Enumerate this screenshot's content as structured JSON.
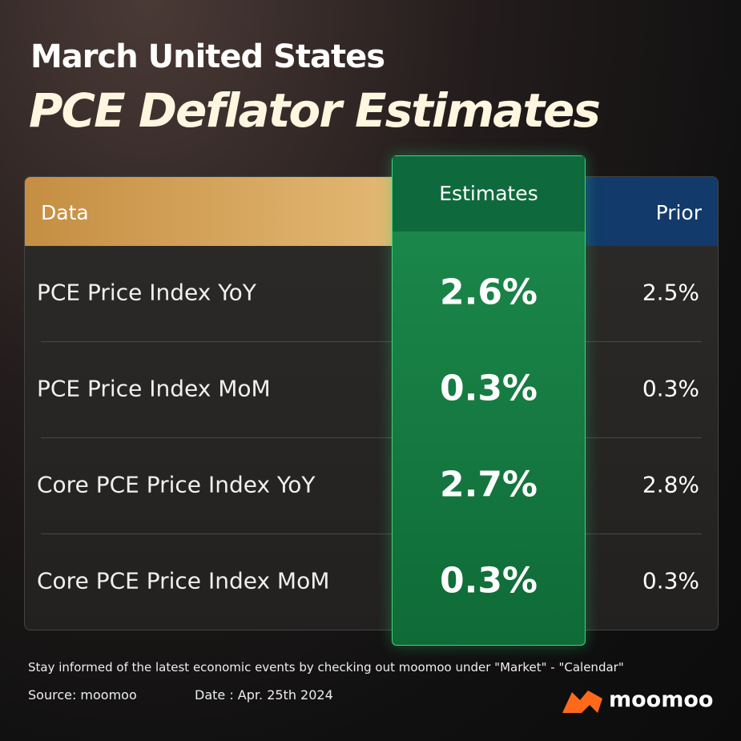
{
  "header": {
    "title_line1": "March United States",
    "title_line2": "PCE Deflator Estimates"
  },
  "table": {
    "columns": [
      "Data",
      "Estimates",
      "Prior"
    ],
    "rows": [
      [
        "PCE Price Index YoY",
        "2.6%",
        "2.5%"
      ],
      [
        "PCE Price Index MoM",
        "0.3%",
        "0.3%"
      ],
      [
        "Core PCE Price Index YoY",
        "2.7%",
        "2.8%"
      ],
      [
        "Core PCE Price Index MoM",
        "0.3%",
        "0.3%"
      ]
    ]
  },
  "footer": {
    "note": "Stay informed of the latest economic events by checking out moomoo under \"Market\" - \"Calendar\"",
    "source": "Source: moomoo",
    "date": "Date : Apr. 25th 2024",
    "brand": "moomoo"
  }
}
